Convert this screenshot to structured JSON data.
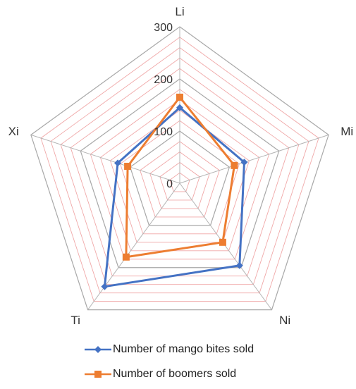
{
  "chart_data": {
    "type": "radar",
    "categories": [
      "Li",
      "Mi",
      "Ni",
      "Ti",
      "Xi"
    ],
    "rlim": [
      0,
      300
    ],
    "rticks": [
      0,
      100,
      200,
      300
    ],
    "grid": true,
    "legend_position": "bottom",
    "series": [
      {
        "name": "Number of mango bites sold",
        "values": [
          145,
          130,
          195,
          245,
          125
        ],
        "color": "#4472C4",
        "marker": "diamond"
      },
      {
        "name": "Number of boomers sold",
        "values": [
          165,
          110,
          140,
          175,
          105
        ],
        "color": "#ED7D31",
        "marker": "square"
      }
    ]
  },
  "legend": {
    "items": [
      {
        "label": "Number of mango bites sold"
      },
      {
        "label": "Number of boomers sold"
      }
    ]
  }
}
